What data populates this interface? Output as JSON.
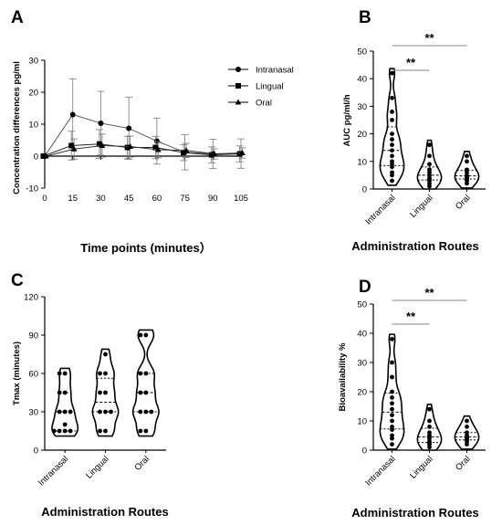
{
  "chart_data": [
    {
      "panel": "A",
      "type": "line",
      "ylabel": "Concentration differences pg/ml",
      "xlabel": "Time points (minutes）",
      "x": [
        0,
        15,
        30,
        45,
        60,
        75,
        90,
        105
      ],
      "xticks": [
        "0",
        "15",
        "30",
        "45",
        "60",
        "75",
        "90",
        "105"
      ],
      "yticks": [
        "-10",
        "0",
        "10",
        "20",
        "30"
      ],
      "ylim": [
        -10,
        30
      ],
      "xlim": [
        0,
        105
      ],
      "reference_line": 0,
      "series": [
        {
          "name": "Intranasal",
          "marker": "circle",
          "values": [
            0,
            13,
            10.3,
            8.7,
            4.7,
            1.2,
            0.7,
            0.8
          ],
          "err": [
            0,
            11.2,
            10,
            9.7,
            7.2,
            5.5,
            4.6,
            4.6
          ]
        },
        {
          "name": "Lingual",
          "marker": "square",
          "values": [
            0,
            3.3,
            3.8,
            2.7,
            2.7,
            1.1,
            0.4,
            0.7
          ],
          "err": [
            0,
            4.5,
            4.5,
            3.5,
            3.5,
            2.5,
            2.5,
            2.5
          ]
        },
        {
          "name": "Oral",
          "marker": "triangle",
          "values": [
            0,
            2.2,
            3.3,
            3.0,
            2.0,
            1.8,
            0.7,
            1.0
          ],
          "err": [
            0,
            3.2,
            3.6,
            3.3,
            2.5,
            2.2,
            1.6,
            1.6
          ]
        }
      ]
    },
    {
      "panel": "B",
      "type": "violin",
      "ylabel": "AUC pg/ml/h",
      "xlabel": "Administration Routes",
      "categories": [
        "Intranasal",
        "Lingual",
        "Oral"
      ],
      "yticks": [
        "0",
        "10",
        "20",
        "30",
        "40",
        "50"
      ],
      "ylim": [
        0,
        50
      ],
      "points": [
        [
          3,
          5,
          6,
          8,
          9,
          10,
          12,
          14,
          16,
          18,
          20,
          25,
          28,
          33,
          42
        ],
        [
          1,
          2,
          3,
          3.5,
          4,
          5,
          6,
          7,
          9,
          12,
          16
        ],
        [
          2,
          3,
          3.5,
          4,
          4.5,
          5,
          6,
          7,
          10,
          12
        ]
      ],
      "significance": [
        {
          "from": "Intranasal",
          "to": "Lingual",
          "label": "**"
        },
        {
          "from": "Intranasal",
          "to": "Oral",
          "label": "**"
        }
      ]
    },
    {
      "panel": "C",
      "type": "violin",
      "ylabel": "Tmax (minutes)",
      "xlabel": "Administration Routes",
      "categories": [
        "Intranasal",
        "Lingual",
        "Oral"
      ],
      "yticks": [
        "0",
        "30",
        "60",
        "90",
        "120"
      ],
      "ylim": [
        0,
        120
      ],
      "points": [
        [
          15,
          15,
          15,
          15,
          20,
          30,
          30,
          30,
          45,
          45,
          60,
          60
        ],
        [
          15,
          15,
          30,
          30,
          30,
          45,
          45,
          60,
          60,
          75
        ],
        [
          15,
          15,
          30,
          30,
          30,
          45,
          45,
          60,
          60,
          90,
          90
        ]
      ],
      "significance": []
    },
    {
      "panel": "D",
      "type": "violin",
      "ylabel": "Bioavailability %",
      "xlabel": "Administration Routes",
      "categories": [
        "Intranasal",
        "Lingual",
        "Oral"
      ],
      "yticks": [
        "0",
        "10",
        "20",
        "30",
        "40",
        "50"
      ],
      "ylim": [
        0,
        50
      ],
      "points": [
        [
          2,
          4,
          5,
          7,
          8,
          10,
          12,
          14,
          16,
          18,
          20,
          25,
          30,
          38
        ],
        [
          1,
          2,
          2.5,
          3,
          4,
          5,
          6,
          8,
          10,
          14
        ],
        [
          2,
          3,
          3.5,
          4,
          4.5,
          5,
          6,
          8,
          10
        ]
      ],
      "significance": [
        {
          "from": "Intranasal",
          "to": "Lingual",
          "label": "**"
        },
        {
          "from": "Intranasal",
          "to": "Oral",
          "label": "**"
        }
      ]
    }
  ]
}
